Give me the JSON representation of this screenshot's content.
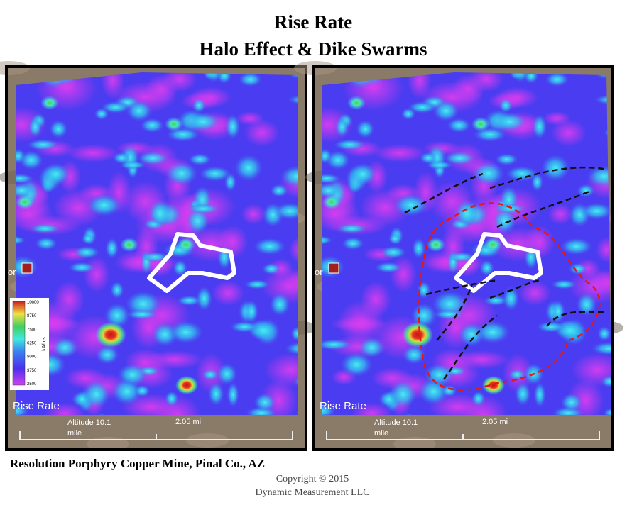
{
  "header": {
    "title": "Rise Rate",
    "subtitle": "Halo Effect & Dike Swarms"
  },
  "panels": [
    {
      "label": "Rise Rate",
      "altitude": "Altitude 10.1",
      "altitude_unit": "mile",
      "scale": "2.05 mi",
      "place": "or"
    },
    {
      "label": "Rise Rate",
      "altitude": "Altitude 10.1",
      "altitude_unit": "mile",
      "scale": "2.05 mi",
      "place": "or"
    }
  ],
  "colorbar": {
    "ticks": [
      "10000",
      "8750",
      "7500",
      "6250",
      "5000",
      "3750",
      "2500"
    ],
    "unit": "kA/ms"
  },
  "footer": {
    "caption": "Resolution  Porphyry  Copper Mine, Pinal Co., AZ",
    "copyright": "Copyright  © 2015",
    "company": "Dynamic  Measurement  LLC"
  }
}
